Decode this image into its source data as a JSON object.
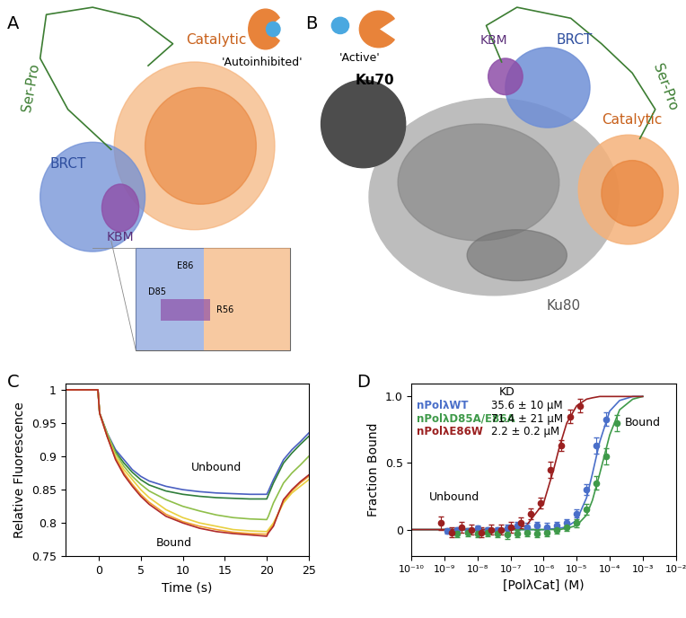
{
  "diagram": {
    "A": {
      "label": "A",
      "state": "'Autoinhibited'",
      "domains": {
        "ser_pro": "Ser-Pro",
        "brct": "BRCT",
        "catalytic": "Catalytic",
        "kbm": "KBM"
      },
      "inset_residues": [
        "E86",
        "D85",
        "R56"
      ]
    },
    "B": {
      "label": "B",
      "state": "'Active'",
      "domains": {
        "ku70": "Ku70",
        "kbm": "KBM",
        "brct": "BRCT",
        "ser_pro": "Ser-Pro",
        "catalytic": "Catalytic",
        "ku80": "Ku80"
      }
    }
  },
  "chart_data": [
    {
      "panel_label": "C",
      "type": "line",
      "x_label": "Time (s)",
      "y_label": "Relative Fluorescence",
      "x": [
        -4,
        -0.1,
        0.1,
        1,
        2,
        3,
        4,
        5,
        6,
        8,
        10,
        12,
        14,
        16,
        18,
        20,
        20.2,
        20.8,
        22,
        23,
        24,
        25
      ],
      "series": [
        {
          "color": "#4a5fc1",
          "values": [
            1,
            1,
            0.965,
            0.935,
            0.91,
            0.895,
            0.88,
            0.87,
            0.863,
            0.855,
            0.85,
            0.847,
            0.845,
            0.844,
            0.843,
            0.843,
            0.848,
            0.865,
            0.895,
            0.91,
            0.922,
            0.935
          ]
        },
        {
          "color": "#2f7d3a",
          "values": [
            1,
            1,
            0.965,
            0.933,
            0.907,
            0.89,
            0.876,
            0.865,
            0.857,
            0.848,
            0.843,
            0.84,
            0.838,
            0.837,
            0.836,
            0.836,
            0.842,
            0.86,
            0.89,
            0.905,
            0.918,
            0.93
          ]
        },
        {
          "color": "#8fbf4a",
          "values": [
            1,
            1,
            0.965,
            0.935,
            0.905,
            0.885,
            0.87,
            0.858,
            0.848,
            0.835,
            0.825,
            0.818,
            0.812,
            0.808,
            0.806,
            0.805,
            0.81,
            0.83,
            0.86,
            0.875,
            0.887,
            0.9
          ]
        },
        {
          "color": "#e8d040",
          "values": [
            1,
            1,
            0.965,
            0.93,
            0.9,
            0.88,
            0.865,
            0.85,
            0.838,
            0.82,
            0.808,
            0.8,
            0.795,
            0.79,
            0.788,
            0.787,
            0.79,
            0.8,
            0.83,
            0.845,
            0.855,
            0.865
          ]
        },
        {
          "color": "#f0a030",
          "values": [
            1,
            1,
            0.965,
            0.93,
            0.897,
            0.875,
            0.858,
            0.843,
            0.831,
            0.813,
            0.802,
            0.795,
            0.79,
            0.786,
            0.784,
            0.783,
            0.787,
            0.797,
            0.833,
            0.848,
            0.86,
            0.87
          ]
        },
        {
          "color": "#b02a2a",
          "values": [
            1,
            1,
            0.965,
            0.93,
            0.895,
            0.872,
            0.855,
            0.84,
            0.828,
            0.81,
            0.8,
            0.792,
            0.787,
            0.784,
            0.782,
            0.78,
            0.785,
            0.795,
            0.835,
            0.85,
            0.862,
            0.872
          ]
        }
      ],
      "xlim": [
        -4,
        25
      ],
      "xticks": [
        0,
        5,
        10,
        15,
        20,
        25
      ],
      "ylim": [
        0.75,
        1.01
      ],
      "yticks": [
        0.75,
        0.8,
        0.85,
        0.9,
        0.95,
        1
      ],
      "annotations": [
        "Unbound",
        "Bound"
      ]
    },
    {
      "panel_label": "D",
      "type": "scatter",
      "x_label": "[PolλCat] (M)",
      "y_label": "Fraction Bound",
      "log": "x",
      "kd_header": "KD",
      "series": [
        {
          "name": "nPolλWT",
          "kd": "35.6 ± 10 μM",
          "color": "#4a6fc9",
          "x": [
            8e-05,
            4e-05,
            2e-05,
            1e-05,
            5e-06,
            2.5e-06,
            1.25e-06,
            6.3e-07,
            3.1e-07,
            1.6e-07,
            7.8e-08,
            3.9e-08,
            2e-08,
            9.8e-09,
            4.9e-09,
            2.4e-09,
            1.2e-09
          ],
          "values": [
            0.83,
            0.63,
            0.3,
            0.12,
            0.05,
            0.03,
            0.02,
            0.03,
            0.02,
            0.03,
            0.01,
            0.0,
            0.0,
            0.01,
            -0.01,
            0.0,
            -0.01
          ],
          "errors": [
            0.05,
            0.06,
            0.04,
            0.03,
            0.03,
            0.03,
            0.03,
            0.03,
            0.03,
            0.03,
            0.03,
            0.02,
            0.02,
            0.02,
            0.02,
            0.02,
            0.02
          ],
          "fit": {
            "x": [
              1e-10,
              1e-09,
              1e-08,
              1e-07,
              1e-06,
              3e-06,
              5e-06,
              1e-05,
              2e-05,
              3e-05,
              5e-05,
              0.0001,
              0.0002,
              0.0005,
              0.001
            ],
            "values": [
              0,
              0,
              0,
              0,
              0,
              0.01,
              0.02,
              0.07,
              0.24,
              0.42,
              0.66,
              0.89,
              0.97,
              1.0,
              1.0
            ]
          }
        },
        {
          "name": "nPolλD85A/E86A",
          "kd": "71.4 ± 21 μM",
          "color": "#3f9a4a",
          "x": [
            0.00016,
            8e-05,
            4e-05,
            2e-05,
            1e-05,
            5e-06,
            2.5e-06,
            1.25e-06,
            6.3e-07,
            3.1e-07,
            1.6e-07,
            7.8e-08,
            3.9e-08,
            2e-08,
            9.8e-09,
            4.9e-09,
            2.4e-09
          ],
          "values": [
            0.8,
            0.55,
            0.35,
            0.15,
            0.05,
            0.02,
            0.0,
            -0.02,
            -0.03,
            -0.02,
            -0.03,
            -0.04,
            -0.03,
            -0.02,
            -0.03,
            -0.02,
            -0.03
          ],
          "errors": [
            0.06,
            0.06,
            0.05,
            0.04,
            0.03,
            0.03,
            0.03,
            0.03,
            0.03,
            0.03,
            0.03,
            0.03,
            0.03,
            0.03,
            0.03,
            0.03,
            0.03
          ],
          "fit": {
            "x": [
              1e-10,
              1e-09,
              1e-08,
              1e-07,
              1e-06,
              3e-06,
              5e-06,
              1e-05,
              2e-05,
              3e-05,
              5e-05,
              0.0001,
              0.0002,
              0.0005,
              0.001
            ],
            "values": [
              0,
              0,
              0,
              0,
              0,
              0,
              0.01,
              0.03,
              0.11,
              0.22,
              0.42,
              0.71,
              0.9,
              0.98,
              1.0
            ]
          }
        },
        {
          "name": "nPolλE86W",
          "kd": "2.2 ± 0.2 μM",
          "color": "#9b2020",
          "x": [
            1.3e-05,
            6.5e-06,
            3.3e-06,
            1.6e-06,
            8.1e-07,
            4.1e-07,
            2e-07,
            1e-07,
            5.1e-08,
            2.5e-08,
            1.3e-08,
            6.3e-09,
            3.2e-09,
            1.6e-09,
            7.9e-10
          ],
          "values": [
            0.93,
            0.85,
            0.63,
            0.45,
            0.2,
            0.12,
            0.05,
            0.02,
            0.0,
            0.0,
            -0.02,
            0.0,
            0.02,
            -0.02,
            0.05
          ],
          "errors": [
            0.05,
            0.05,
            0.04,
            0.06,
            0.04,
            0.04,
            0.04,
            0.04,
            0.04,
            0.04,
            0.04,
            0.04,
            0.04,
            0.04,
            0.05
          ],
          "fit": {
            "x": [
              1e-10,
              1e-09,
              1e-08,
              1e-07,
              3e-07,
              1e-06,
              2e-06,
              3e-06,
              5e-06,
              1e-05,
              2e-05,
              3e-05,
              5e-05,
              0.0001,
              0.001
            ],
            "values": [
              0,
              0,
              0,
              0,
              0.03,
              0.2,
              0.45,
              0.62,
              0.8,
              0.93,
              0.98,
              0.99,
              1.0,
              1.0,
              1.0
            ]
          }
        }
      ],
      "xlim": [
        1e-10,
        0.01
      ],
      "xticks": [
        {
          "value": 1e-10,
          "label": "10⁻¹⁰"
        },
        {
          "value": 1e-09,
          "label": "10⁻⁹"
        },
        {
          "value": 1e-08,
          "label": "10⁻⁸"
        },
        {
          "value": 1e-07,
          "label": "10⁻⁷"
        },
        {
          "value": 1e-06,
          "label": "10⁻⁶"
        },
        {
          "value": 1e-05,
          "label": "10⁻⁵"
        },
        {
          "value": 0.0001,
          "label": "10⁻⁴"
        },
        {
          "value": 0.001,
          "label": "10⁻³"
        },
        {
          "value": 0.01,
          "label": "10⁻²"
        }
      ],
      "ylim": [
        -0.2,
        1.1
      ],
      "yticks": [
        0,
        0.5,
        {
          "value": 1,
          "label": "1.0"
        }
      ],
      "annotations": [
        "Unbound",
        "Bound"
      ]
    }
  ]
}
